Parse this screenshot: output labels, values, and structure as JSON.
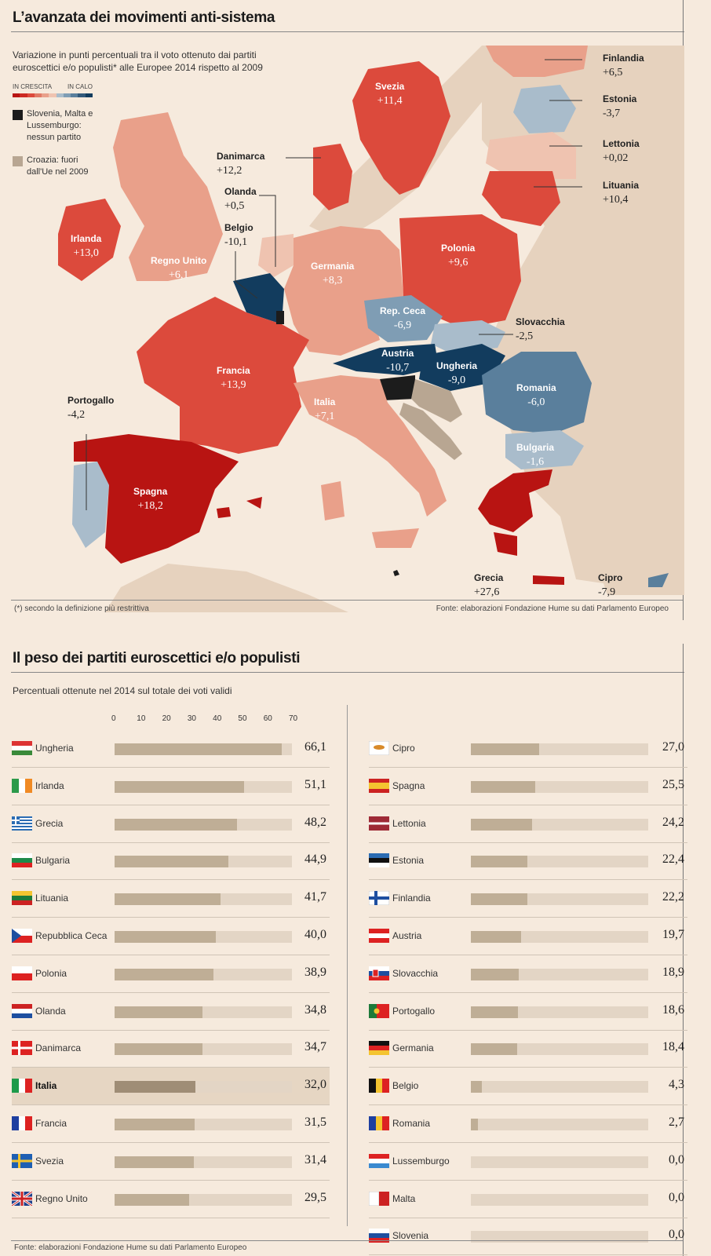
{
  "map_section": {
    "title": "L’avanzata dei movimenti anti-sistema",
    "subtitle": "Variazione in punti percentuali tra il voto ottenuto dai partiti euroscettici e/o populisti* alle Europee 2014 rispetto al 2009",
    "legend_up": "IN CRESCITA",
    "legend_down": "IN CALO",
    "legend_scale_colors": [
      "#b81412",
      "#cc2a22",
      "#dc4a3c",
      "#e07a66",
      "#e9a08a",
      "#efc3b0",
      "#a9bccb",
      "#7f9db4",
      "#5a7f9c",
      "#33597a",
      "#123c5e"
    ],
    "legend_black": "Slovenia, Malta e Lussemburgo: nessun partito",
    "legend_grey": "Croazia: fuori dall'Ue nel 2009",
    "footnote": "(*) secondo la definizione più restrittiva",
    "source": "Fonte: elaborazioni Fondazione Hume su dati Parlamento Europeo"
  },
  "chart_data": [
    {
      "type": "map",
      "title": "L’avanzata dei movimenti anti-sistema",
      "subtitle": "Variazione in punti percentuali tra il voto ottenuto dai partiti euroscettici e/o populisti* alle Europee 2014 rispetto al 2009",
      "regions": [
        {
          "name": "Finlandia",
          "value": "+6,5"
        },
        {
          "name": "Svezia",
          "value": "+11,4"
        },
        {
          "name": "Estonia",
          "value": "-3,7"
        },
        {
          "name": "Lettonia",
          "value": "+0,02"
        },
        {
          "name": "Lituania",
          "value": "+10,4"
        },
        {
          "name": "Danimarca",
          "value": "+12,2"
        },
        {
          "name": "Olanda",
          "value": "+0,5"
        },
        {
          "name": "Belgio",
          "value": "-10,1"
        },
        {
          "name": "Irlanda",
          "value": "+13,0"
        },
        {
          "name": "Regno Unito",
          "value": "+6,1"
        },
        {
          "name": "Germania",
          "value": "+8,3"
        },
        {
          "name": "Polonia",
          "value": "+9,6"
        },
        {
          "name": "Rep. Ceca",
          "value": "-6,9"
        },
        {
          "name": "Slovacchia",
          "value": "-2,5"
        },
        {
          "name": "Austria",
          "value": "-10,7"
        },
        {
          "name": "Ungheria",
          "value": "-9,0"
        },
        {
          "name": "Francia",
          "value": "+13,9"
        },
        {
          "name": "Italia",
          "value": "+7,1"
        },
        {
          "name": "Romania",
          "value": "-6,0"
        },
        {
          "name": "Bulgaria",
          "value": "-1,6"
        },
        {
          "name": "Portogallo",
          "value": "-4,2"
        },
        {
          "name": "Spagna",
          "value": "+18,2"
        },
        {
          "name": "Grecia",
          "value": "+27,6"
        },
        {
          "name": "Cipro",
          "value": "-7,9"
        }
      ]
    },
    {
      "type": "bar",
      "title": "Il peso dei partiti euroscettici e/o populisti",
      "subtitle": "Percentuali ottenute nel 2014 sul totale dei voti validi",
      "xlim": [
        0,
        70
      ],
      "ticks": [
        "0",
        "10",
        "20",
        "30",
        "40",
        "50",
        "60",
        "70"
      ],
      "left_column": [
        {
          "name": "Ungheria",
          "value": 66.1,
          "label": "66,1"
        },
        {
          "name": "Irlanda",
          "value": 51.1,
          "label": "51,1"
        },
        {
          "name": "Grecia",
          "value": 48.2,
          "label": "48,2"
        },
        {
          "name": "Bulgaria",
          "value": 44.9,
          "label": "44,9"
        },
        {
          "name": "Lituania",
          "value": 41.7,
          "label": "41,7"
        },
        {
          "name": "Repubblica Ceca",
          "value": 40.0,
          "label": "40,0"
        },
        {
          "name": "Polonia",
          "value": 38.9,
          "label": "38,9"
        },
        {
          "name": "Olanda",
          "value": 34.8,
          "label": "34,8"
        },
        {
          "name": "Danimarca",
          "value": 34.7,
          "label": "34,7"
        },
        {
          "name": "Italia",
          "value": 32.0,
          "label": "32,0",
          "highlight": true
        },
        {
          "name": "Francia",
          "value": 31.5,
          "label": "31,5"
        },
        {
          "name": "Svezia",
          "value": 31.4,
          "label": "31,4"
        },
        {
          "name": "Regno Unito",
          "value": 29.5,
          "label": "29,5"
        }
      ],
      "right_column": [
        {
          "name": "Cipro",
          "value": 27.0,
          "label": "27,0"
        },
        {
          "name": "Spagna",
          "value": 25.5,
          "label": "25,5"
        },
        {
          "name": "Lettonia",
          "value": 24.2,
          "label": "24,2"
        },
        {
          "name": "Estonia",
          "value": 22.4,
          "label": "22,4"
        },
        {
          "name": "Finlandia",
          "value": 22.2,
          "label": "22,2"
        },
        {
          "name": "Austria",
          "value": 19.7,
          "label": "19,7"
        },
        {
          "name": "Slovacchia",
          "value": 18.9,
          "label": "18,9"
        },
        {
          "name": "Portogallo",
          "value": 18.6,
          "label": "18,6"
        },
        {
          "name": "Germania",
          "value": 18.4,
          "label": "18,4"
        },
        {
          "name": "Belgio",
          "value": 4.3,
          "label": "4,3"
        },
        {
          "name": "Romania",
          "value": 2.7,
          "label": "2,7"
        },
        {
          "name": "Lussemburgo",
          "value": 0.0,
          "label": "0,0"
        },
        {
          "name": "Malta",
          "value": 0.0,
          "label": "0,0"
        },
        {
          "name": "Slovenia",
          "value": 0.0,
          "label": "0,0"
        }
      ],
      "source": "Fonte: elaborazioni Fondazione Hume su dati Parlamento Europeo"
    }
  ],
  "colors": {
    "bar_fill": "#bfae96",
    "bar_track": "#e3d5c5",
    "highlight_row": "#e6d6c3",
    "highlight_fill": "#9f8d76"
  }
}
